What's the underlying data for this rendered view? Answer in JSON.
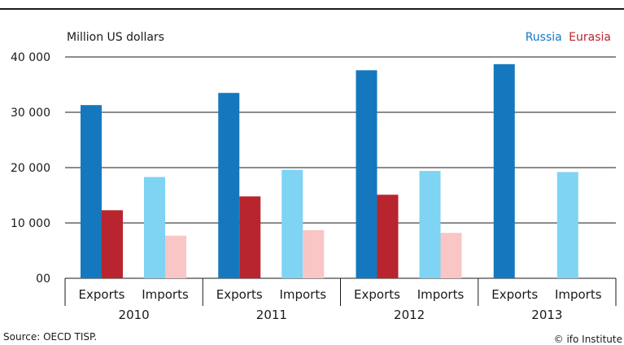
{
  "chart_data": {
    "type": "bar",
    "unit_label": "Million US dollars",
    "groups": [
      "2010",
      "2011",
      "2012",
      "2013"
    ],
    "sub_categories": [
      "Exports",
      "Imports"
    ],
    "series": [
      {
        "name": "Russia",
        "kind": "Exports",
        "color": "#1578bf",
        "values": [
          31300,
          33500,
          37600,
          38700
        ]
      },
      {
        "name": "Eurasia",
        "kind": "Exports",
        "color": "#b8252e",
        "values": [
          12300,
          14800,
          15100,
          null
        ]
      },
      {
        "name": "Russia",
        "kind": "Imports",
        "color": "#7fd3f3",
        "values": [
          18300,
          19600,
          19400,
          19200
        ]
      },
      {
        "name": "Eurasia",
        "kind": "Imports",
        "color": "#f9c5c5",
        "values": [
          7700,
          8700,
          8200,
          null
        ]
      }
    ],
    "ylim": [
      0,
      40000
    ],
    "yticks": [
      0,
      10000,
      20000,
      30000,
      40000
    ],
    "ytick_labels": [
      "00",
      "10 000",
      "20 000",
      "30 000",
      "40 000"
    ],
    "grid": true,
    "legend_position": "top-right"
  },
  "legend": {
    "russia": "Russia",
    "eurasia": "Eurasia",
    "russia_color": "#1578bf",
    "eurasia_color": "#b8252e"
  },
  "source": "Source:  OECD TISP.",
  "credit": "© ifo Institute"
}
